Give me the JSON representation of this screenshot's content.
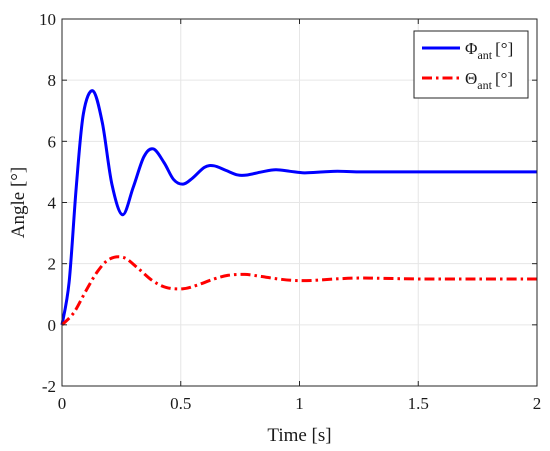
{
  "chart_data": {
    "type": "line",
    "xlabel": "Time [s]",
    "ylabel": "Angle [°]",
    "xlim": [
      0,
      2
    ],
    "ylim": [
      -2,
      10
    ],
    "x_ticks": [
      0,
      0.5,
      1,
      1.5,
      2
    ],
    "x_tick_labels": [
      "0",
      "0.5",
      "1",
      "1.5",
      "2"
    ],
    "y_ticks": [
      -2,
      0,
      2,
      4,
      6,
      8,
      10
    ],
    "y_tick_labels": [
      "-2",
      "0",
      "2",
      "4",
      "6",
      "8",
      "10"
    ],
    "grid": true,
    "legend_position": "top-right",
    "series": [
      {
        "legend_symbol": "Φ",
        "legend_subscript": "ant",
        "legend_unit": "[°]",
        "color": "#0000ff",
        "style": "solid",
        "x": [
          0,
          0.03,
          0.06,
          0.09,
          0.13,
          0.17,
          0.21,
          0.255,
          0.3,
          0.345,
          0.385,
          0.43,
          0.47,
          0.51,
          0.55,
          0.6,
          0.64,
          0.69,
          0.74,
          0.78,
          0.84,
          0.9,
          0.96,
          1.02,
          1.1,
          1.16,
          1.25,
          1.4,
          1.6,
          1.8,
          2.0
        ],
        "y": [
          0,
          1.4,
          4.5,
          6.9,
          7.65,
          6.6,
          4.6,
          3.6,
          4.5,
          5.5,
          5.75,
          5.3,
          4.75,
          4.6,
          4.8,
          5.15,
          5.2,
          5.05,
          4.9,
          4.9,
          5.0,
          5.07,
          5.02,
          4.97,
          5.0,
          5.02,
          5.0,
          5.0,
          5.0,
          5.0,
          5.0
        ]
      },
      {
        "legend_symbol": "Θ",
        "legend_subscript": "ant",
        "legend_unit": "[°]",
        "color": "#ff0000",
        "style": "dashdot",
        "x": [
          0,
          0.05,
          0.1,
          0.15,
          0.2,
          0.26,
          0.32,
          0.38,
          0.44,
          0.51,
          0.57,
          0.64,
          0.7,
          0.77,
          0.84,
          0.91,
          0.98,
          1.05,
          1.15,
          1.25,
          1.35,
          1.5,
          1.7,
          2.0
        ],
        "y": [
          0,
          0.4,
          1.1,
          1.75,
          2.15,
          2.2,
          1.85,
          1.45,
          1.22,
          1.18,
          1.3,
          1.5,
          1.62,
          1.65,
          1.58,
          1.5,
          1.45,
          1.45,
          1.5,
          1.53,
          1.52,
          1.5,
          1.5,
          1.5
        ]
      }
    ]
  }
}
